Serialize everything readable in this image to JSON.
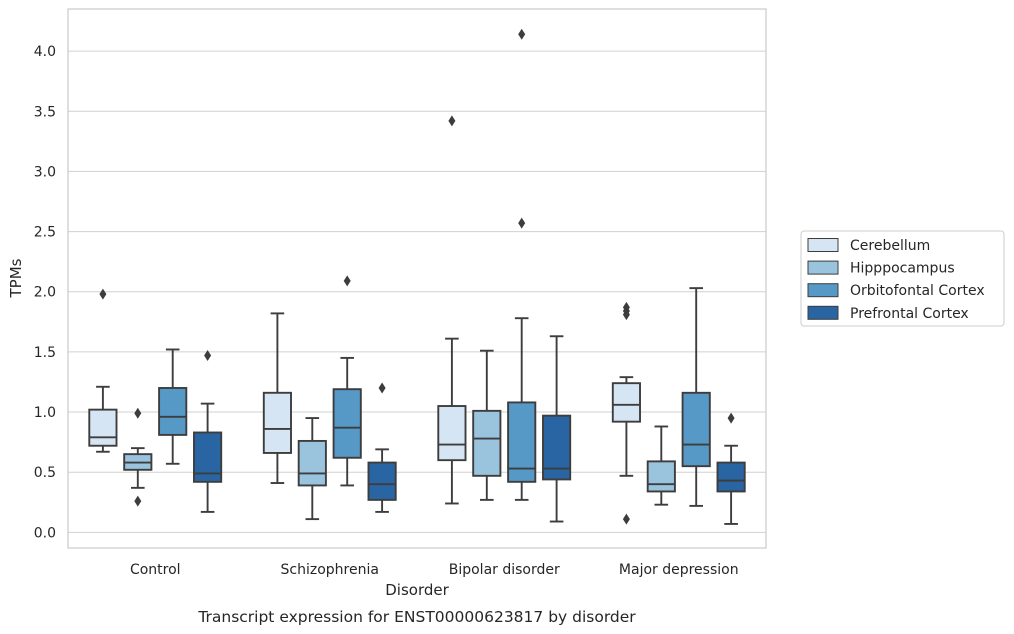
{
  "chart_data": {
    "type": "box",
    "title": "",
    "caption": "Transcript expression for ENST00000623817 by disorder",
    "xlabel": "Disorder",
    "ylabel": "TPMs",
    "ylim": [
      -0.13,
      4.35
    ],
    "yticks": [
      "0.0",
      "0.5",
      "1.0",
      "1.5",
      "2.0",
      "2.5",
      "3.0",
      "3.5",
      "4.0"
    ],
    "grid": true,
    "legend_position": "right",
    "categories": [
      "Control",
      "Schizophrenia",
      "Bipolar disorder",
      "Major depression"
    ],
    "series": [
      {
        "name": "Cerebellum",
        "color": "#d6e5f3",
        "boxes": [
          {
            "whislo": 0.67,
            "q1": 0.72,
            "med": 0.79,
            "q3": 1.02,
            "whishi": 1.21,
            "fliers": [
              1.98
            ]
          },
          {
            "whislo": 0.41,
            "q1": 0.66,
            "med": 0.86,
            "q3": 1.16,
            "whishi": 1.82,
            "fliers": []
          },
          {
            "whislo": 0.24,
            "q1": 0.6,
            "med": 0.73,
            "q3": 1.05,
            "whishi": 1.61,
            "fliers": [
              3.42
            ]
          },
          {
            "whislo": 0.47,
            "q1": 0.92,
            "med": 1.06,
            "q3": 1.24,
            "whishi": 1.29,
            "fliers": [
              1.81,
              1.84,
              1.87,
              0.11
            ]
          }
        ]
      },
      {
        "name": "Hipppocampus",
        "color": "#9ac3de",
        "boxes": [
          {
            "whislo": 0.37,
            "q1": 0.52,
            "med": 0.58,
            "q3": 0.65,
            "whishi": 0.7,
            "fliers": [
              0.99,
              0.26
            ]
          },
          {
            "whislo": 0.11,
            "q1": 0.39,
            "med": 0.49,
            "q3": 0.76,
            "whishi": 0.95,
            "fliers": []
          },
          {
            "whislo": 0.27,
            "q1": 0.47,
            "med": 0.78,
            "q3": 1.01,
            "whishi": 1.51,
            "fliers": []
          },
          {
            "whislo": 0.23,
            "q1": 0.34,
            "med": 0.4,
            "q3": 0.59,
            "whishi": 0.88,
            "fliers": []
          }
        ]
      },
      {
        "name": "Orbitofontal Cortex",
        "color": "#5698c6",
        "boxes": [
          {
            "whislo": 0.57,
            "q1": 0.81,
            "med": 0.96,
            "q3": 1.2,
            "whishi": 1.52,
            "fliers": []
          },
          {
            "whislo": 0.39,
            "q1": 0.62,
            "med": 0.87,
            "q3": 1.19,
            "whishi": 1.45,
            "fliers": [
              2.09
            ]
          },
          {
            "whislo": 0.27,
            "q1": 0.42,
            "med": 0.53,
            "q3": 1.08,
            "whishi": 1.78,
            "fliers": [
              2.57,
              4.14
            ]
          },
          {
            "whislo": 0.22,
            "q1": 0.55,
            "med": 0.73,
            "q3": 1.16,
            "whishi": 2.03,
            "fliers": []
          }
        ]
      },
      {
        "name": "Prefrontal Cortex",
        "color": "#2a65a3",
        "boxes": [
          {
            "whislo": 0.17,
            "q1": 0.42,
            "med": 0.49,
            "q3": 0.83,
            "whishi": 1.07,
            "fliers": [
              1.47
            ]
          },
          {
            "whislo": 0.17,
            "q1": 0.27,
            "med": 0.4,
            "q3": 0.58,
            "whishi": 0.69,
            "fliers": [
              1.2
            ]
          },
          {
            "whislo": 0.09,
            "q1": 0.44,
            "med": 0.53,
            "q3": 0.97,
            "whishi": 1.63,
            "fliers": []
          },
          {
            "whislo": 0.07,
            "q1": 0.34,
            "med": 0.43,
            "q3": 0.58,
            "whishi": 0.72,
            "fliers": [
              0.95
            ]
          }
        ]
      }
    ]
  }
}
